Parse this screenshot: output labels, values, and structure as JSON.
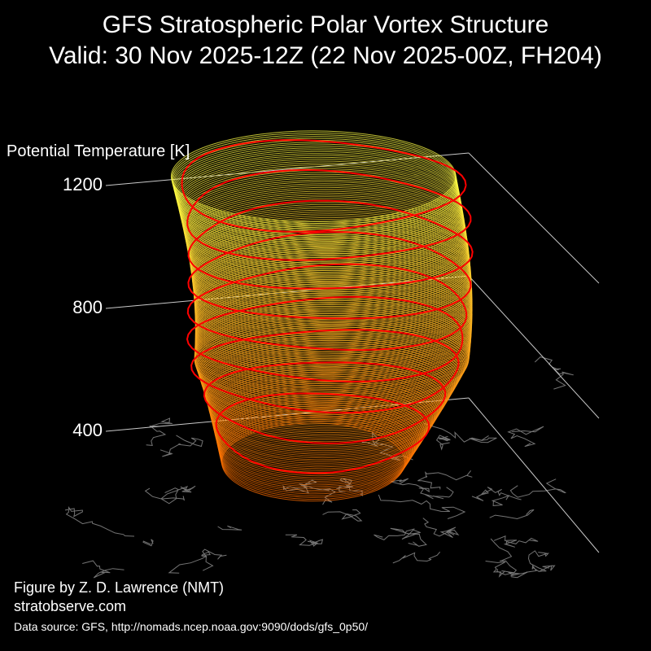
{
  "header": {
    "title_line1": "GFS Stratospheric Polar Vortex Structure",
    "title_line2": "Valid: 30 Nov 2025-12Z  (22 Nov 2025-00Z, FH204)"
  },
  "chart_data": {
    "type": "3d-surface",
    "zlabel": "Potential Temperature [K]",
    "z_ticks": [
      400,
      800,
      1200
    ],
    "zlim": [
      250,
      1300
    ],
    "isentrope_levels_K": [
      400,
      500,
      600,
      700,
      800,
      900,
      1000,
      1100,
      1200
    ],
    "colors": {
      "background": "#000000",
      "low_level_surface": "#ff8c00",
      "high_level_surface": "#ffff40",
      "contour_outline": "#ff0000",
      "coastlines": "#888888",
      "axis_lines": "#c8c8c8"
    }
  },
  "footer": {
    "credit": "Figure by Z. D. Lawrence (NMT)",
    "site": "stratobserve.com",
    "data_source": "Data source: GFS, http://nomads.ncep.noaa.gov:9090/dods/gfs_0p50/"
  }
}
